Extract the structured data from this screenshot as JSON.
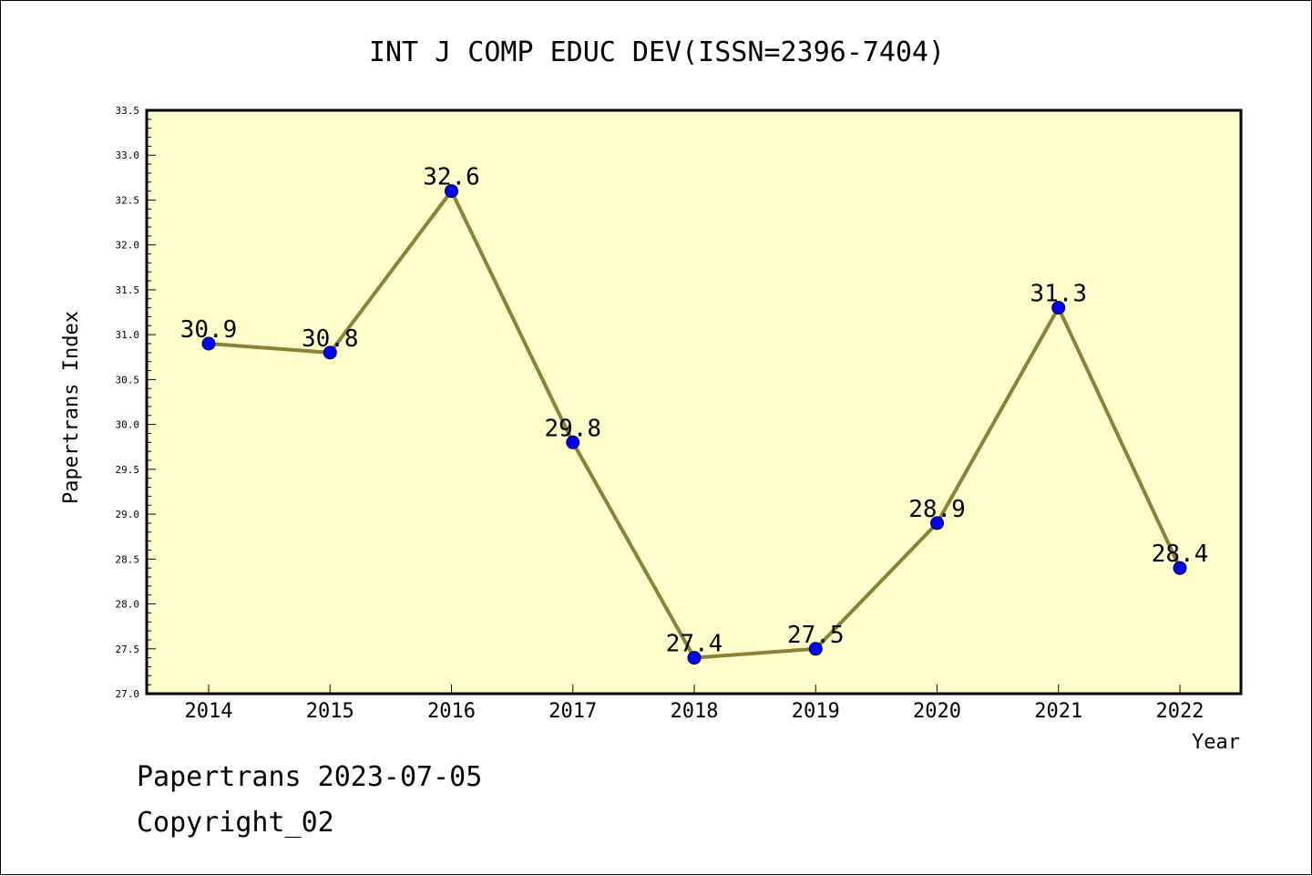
{
  "chart_data": {
    "type": "line",
    "title": "INT J COMP EDUC DEV(ISSN=2396-7404)",
    "xlabel": "Year",
    "ylabel": "Papertrans Index",
    "categories": [
      "2014",
      "2015",
      "2016",
      "2017",
      "2018",
      "2019",
      "2020",
      "2021",
      "2022"
    ],
    "series": [
      {
        "values": [
          30.9,
          30.8,
          32.6,
          29.8,
          27.4,
          27.5,
          28.9,
          31.3,
          28.4
        ]
      }
    ],
    "data_labels": [
      "30.9",
      "30.8",
      "32.6",
      "29.8",
      "27.4",
      "27.5",
      "28.9",
      "31.3",
      "28.4"
    ],
    "ylim": [
      27.0,
      33.5
    ],
    "yticks": [
      "27.0",
      "27.5",
      "28.0",
      "28.5",
      "29.0",
      "29.5",
      "30.0",
      "30.5",
      "31.0",
      "31.5",
      "32.0",
      "32.5",
      "33.0",
      "33.5"
    ],
    "grid": false,
    "colors": {
      "plot_bg": "#ffffcc",
      "line": "#8b8236",
      "marker": "#0000ff"
    }
  },
  "footer": {
    "line1": "Papertrans 2023-07-05",
    "line2": "Copyright_02"
  }
}
